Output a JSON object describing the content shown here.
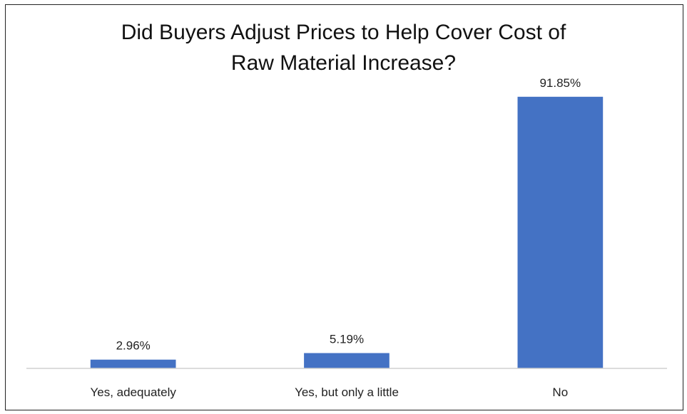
{
  "chart_data": {
    "type": "bar",
    "title": "Did Buyers Adjust Prices to Help Cover Cost of Raw Material Increase?",
    "title_lines": [
      "Did Buyers Adjust Prices to Help Cover Cost of",
      "Raw Material Increase?"
    ],
    "categories": [
      "Yes, adequately",
      "Yes, but only a little",
      "No"
    ],
    "values": [
      2.96,
      5.19,
      91.85
    ],
    "data_labels": [
      "2.96%",
      "5.19%",
      "91.85%"
    ],
    "xlabel": "",
    "ylabel": "",
    "ylim": [
      0,
      100
    ],
    "grid": false,
    "legend": "none",
    "colors": {
      "bar": "#4472C4",
      "axis": "#d0d0d0"
    }
  }
}
